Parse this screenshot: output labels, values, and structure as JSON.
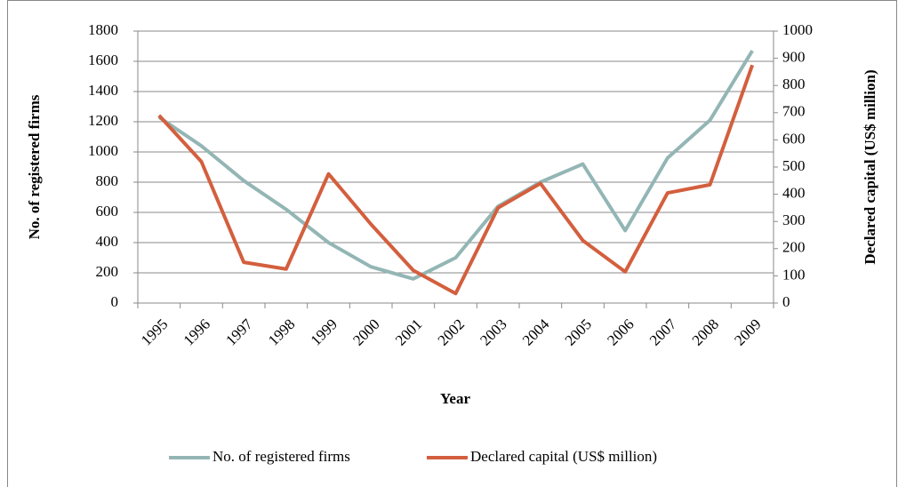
{
  "chart_data": {
    "type": "line",
    "x_label": "Year",
    "y_label": "No. of registered firms",
    "y2_label": "Declared capital (US$ million)",
    "categories": [
      "1995",
      "1996",
      "1997",
      "1998",
      "1999",
      "2000",
      "2001",
      "2002",
      "2003",
      "2004",
      "2005",
      "2006",
      "2007",
      "2008",
      "2009"
    ],
    "series": [
      {
        "name": "No. of registered firms",
        "color": "#93b6b5",
        "values": [
          1230,
          1040,
          810,
          620,
          400,
          240,
          160,
          300,
          640,
          800,
          920,
          480,
          960,
          1210,
          1670
        ]
      },
      {
        "name": "Declared capital (US$ million)",
        "color": "#d35f3e",
        "axis": "y2",
        "values": [
          690,
          520,
          150,
          125,
          475,
          290,
          120,
          35,
          350,
          440,
          230,
          115,
          405,
          435,
          875
        ]
      }
    ],
    "ylim": [
      0,
      1800
    ],
    "yticks": [
      0,
      200,
      400,
      600,
      800,
      1000,
      1200,
      1400,
      1600,
      1800
    ],
    "y2lim": [
      0,
      1000
    ],
    "y2ticks": [
      0,
      100,
      200,
      300,
      400,
      500,
      600,
      700,
      800,
      900,
      1000
    ],
    "grid": true,
    "legend": "bottom"
  }
}
